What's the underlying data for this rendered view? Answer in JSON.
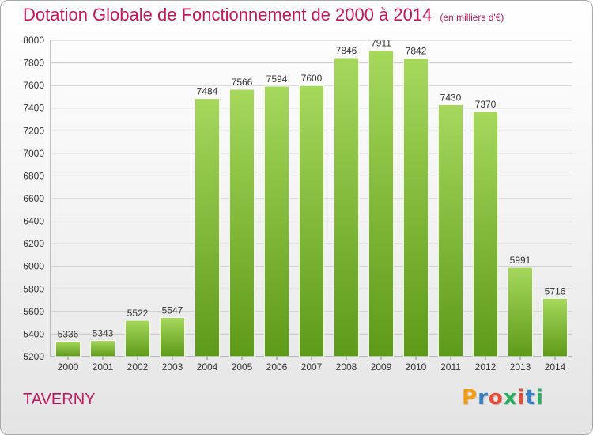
{
  "header": {
    "title": "Dotation Globale de Fonctionnement de 2000 à 2014",
    "subtitle": "(en milliers d'€)"
  },
  "footer": {
    "town": "TAVERNY",
    "logo": {
      "text": "Proxiti",
      "letter_colors": [
        "#f39c12",
        "#3a7fc1",
        "#e74c3c",
        "#27ae60",
        "#e74c3c",
        "#3a7fc1",
        "#27ae60"
      ]
    }
  },
  "colors": {
    "title": "#c2185b",
    "bar_light": "#a6d85c",
    "bar_dark": "#5e9a1a",
    "grid": "#c8c8c8",
    "axis_text": "#333333"
  },
  "chart_data": {
    "type": "bar",
    "title": "Dotation Globale de Fonctionnement de 2000 à 2014",
    "subtitle": "(en milliers d'€)",
    "categories": [
      "2000",
      "2001",
      "2002",
      "2003",
      "2004",
      "2005",
      "2006",
      "2007",
      "2008",
      "2009",
      "2010",
      "2011",
      "2012",
      "2013",
      "2014"
    ],
    "values": [
      5336,
      5343,
      5522,
      5547,
      7484,
      7566,
      7594,
      7600,
      7846,
      7911,
      7842,
      7430,
      7370,
      5991,
      5716
    ],
    "ylim": [
      5200,
      8000
    ],
    "yticks": [
      5200,
      5400,
      5600,
      5800,
      6000,
      6200,
      6400,
      6600,
      6800,
      7000,
      7200,
      7400,
      7600,
      7800,
      8000
    ],
    "grid": true,
    "data_labels": true,
    "xlabel": "",
    "ylabel": ""
  }
}
